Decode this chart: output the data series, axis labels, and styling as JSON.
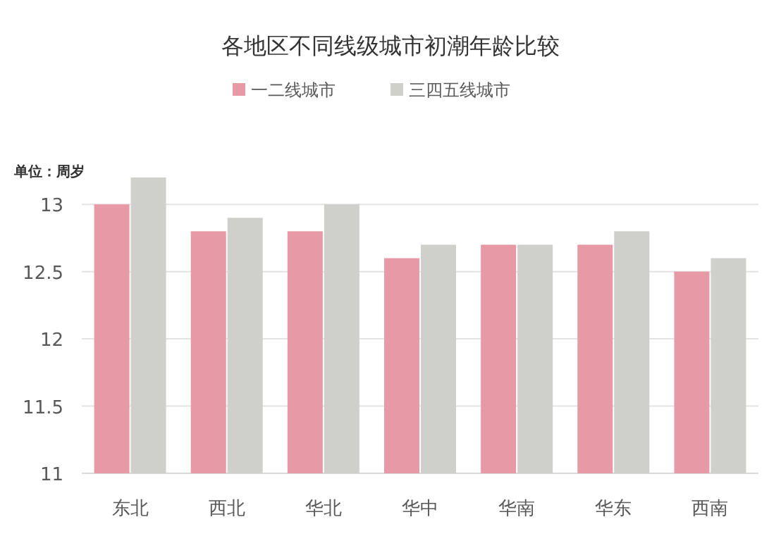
{
  "chart_data": {
    "type": "bar",
    "title": "各地区不同线级城市初潮年龄比较",
    "ylabel": "单位：周岁",
    "categories": [
      "东北",
      "西北",
      "华北",
      "华中",
      "华南",
      "华东",
      "西南"
    ],
    "series": [
      {
        "name": "一二线城市",
        "color": "#e899a6",
        "values": [
          13.0,
          12.8,
          12.8,
          12.6,
          12.7,
          12.7,
          12.5
        ]
      },
      {
        "name": "三四五线城市",
        "color": "#cfcfcc",
        "values": [
          13.2,
          12.9,
          13.0,
          12.7,
          12.7,
          12.8,
          12.6
        ]
      }
    ],
    "ylim": [
      11,
      13.2
    ],
    "yticks": [
      11,
      11.5,
      12,
      12.5,
      13
    ],
    "grid": "y",
    "legend": "top"
  }
}
